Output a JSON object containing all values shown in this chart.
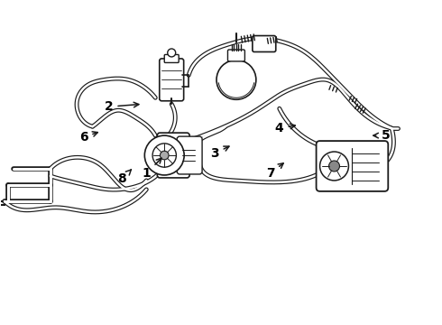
{
  "background_color": "#ffffff",
  "line_color": "#1a1a1a",
  "label_color": "#000000",
  "fig_width": 4.9,
  "fig_height": 3.6,
  "dpi": 100,
  "label_info": [
    [
      "1",
      1.62,
      1.68,
      1.82,
      1.88
    ],
    [
      "2",
      1.2,
      2.42,
      1.58,
      2.45
    ],
    [
      "3",
      2.38,
      1.9,
      2.58,
      2.0
    ],
    [
      "4",
      3.1,
      2.18,
      3.32,
      2.22
    ],
    [
      "5",
      4.28,
      2.1,
      4.1,
      2.1
    ],
    [
      "6",
      0.92,
      2.08,
      1.12,
      2.15
    ],
    [
      "7",
      3.0,
      1.68,
      3.18,
      1.82
    ],
    [
      "8",
      1.35,
      1.62,
      1.48,
      1.75
    ]
  ]
}
